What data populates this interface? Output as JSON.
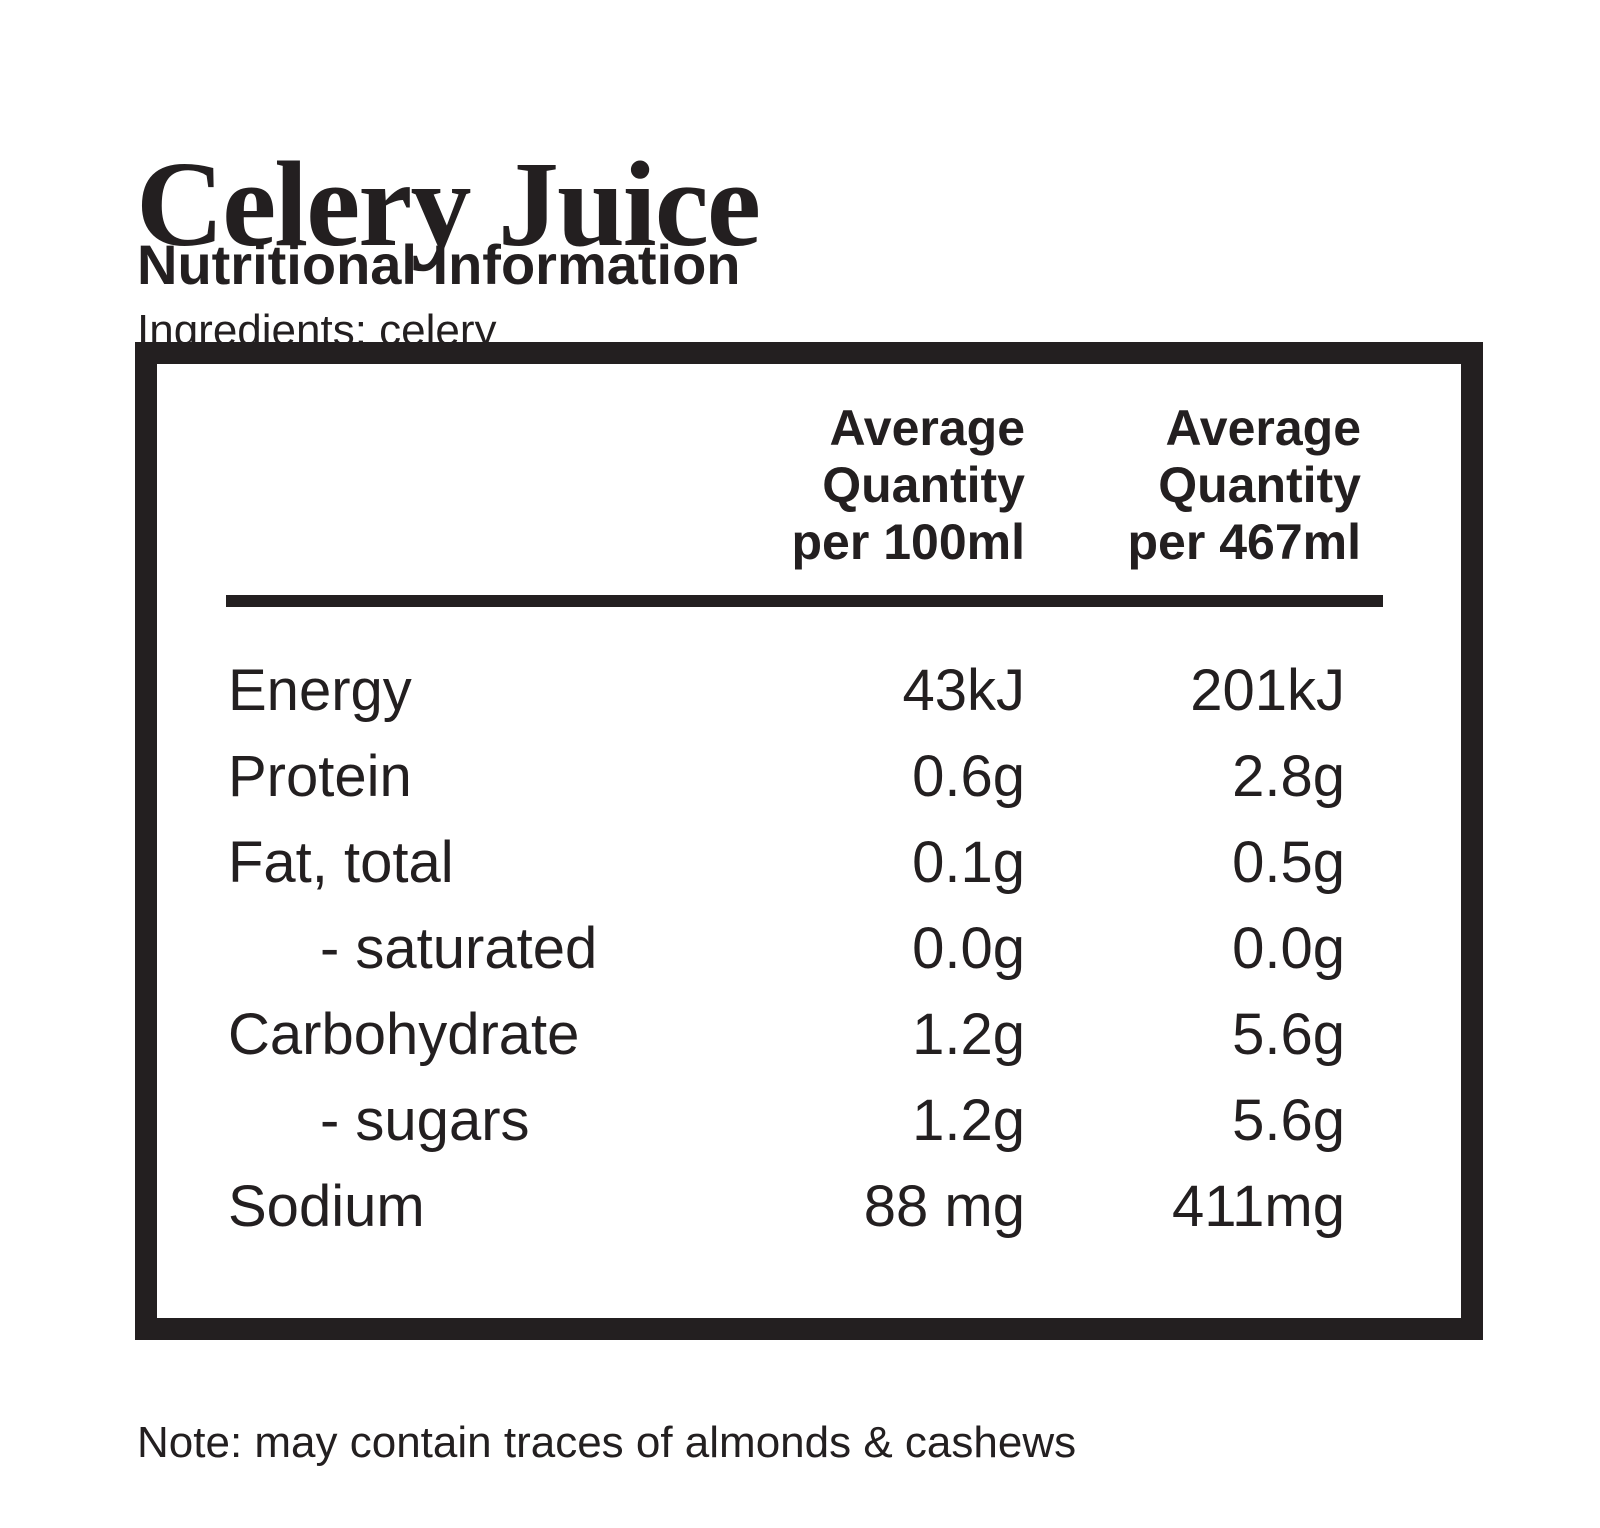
{
  "page": {
    "title": "Celery Juice",
    "subtitle": "Nutritional Information",
    "ingredients": "Ingredients: celery",
    "note": "Note: may contain traces of almonds & cashews"
  },
  "table": {
    "columns": [
      {
        "lines": [
          "Average",
          "Quantity",
          "per 100ml"
        ]
      },
      {
        "lines": [
          "Average",
          "Quantity",
          "per 467ml"
        ]
      }
    ],
    "rows": [
      {
        "label": "Energy",
        "indent": false,
        "per100ml": "43kJ",
        "per467ml": "201kJ"
      },
      {
        "label": "Protein",
        "indent": false,
        "per100ml": "0.6g",
        "per467ml": "2.8g"
      },
      {
        "label": "Fat, total",
        "indent": false,
        "per100ml": "0.1g",
        "per467ml": "0.5g"
      },
      {
        "label": "- saturated",
        "indent": true,
        "per100ml": "0.0g",
        "per467ml": "0.0g"
      },
      {
        "label": "Carbohydrate",
        "indent": false,
        "per100ml": "1.2g",
        "per467ml": "5.6g"
      },
      {
        "label": "- sugars",
        "indent": true,
        "per100ml": "1.2g",
        "per467ml": "5.6g"
      },
      {
        "label": "Sodium",
        "indent": false,
        "per100ml": "88 mg",
        "per467ml": "411mg"
      }
    ]
  },
  "colors": {
    "text": "#231f20",
    "background": "#ffffff"
  }
}
